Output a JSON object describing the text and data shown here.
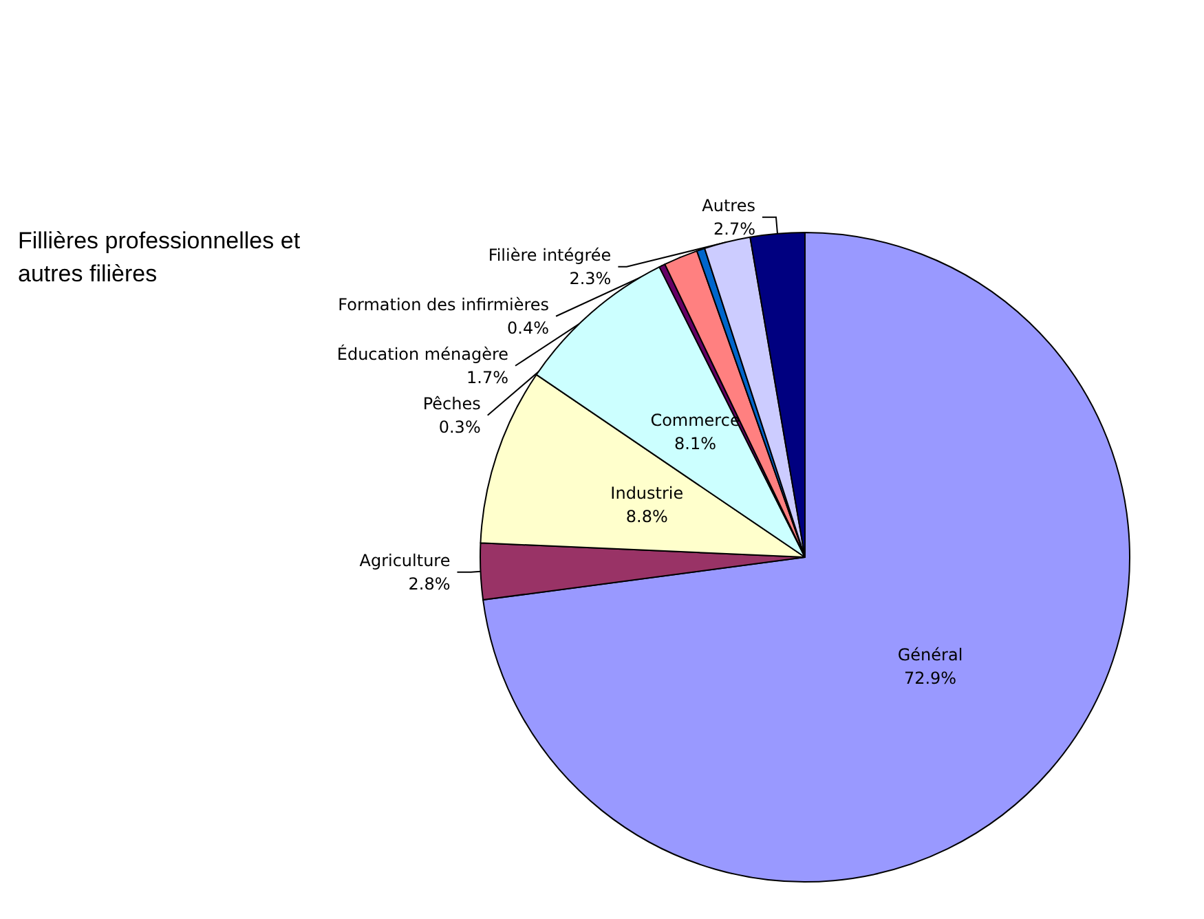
{
  "chart_data": {
    "type": "pie",
    "title": "Fillières professionnelles et autres filières",
    "categories": [
      "Général",
      "Agriculture",
      "Industrie",
      "Commerce",
      "Pêches",
      "Éducation ménagère",
      "Formation des infirmières",
      "Filière intégrée",
      "Autres"
    ],
    "values": [
      72.9,
      2.8,
      8.8,
      8.1,
      0.3,
      1.7,
      0.4,
      2.3,
      2.7
    ],
    "colors": [
      "#9999ff",
      "#993366",
      "#ffffcc",
      "#ccffff",
      "#660066",
      "#ff8080",
      "#0066cc",
      "#ccccff",
      "#000080"
    ],
    "value_labels": [
      "72.9%",
      "2.8%",
      "8.8%",
      "8.1%",
      "0.3%",
      "1.7%",
      "0.4%",
      "2.3%",
      "2.7%"
    ],
    "legend": false
  }
}
